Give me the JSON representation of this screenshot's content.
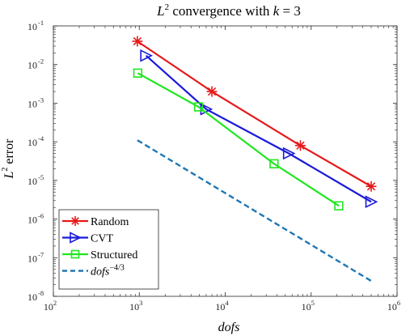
{
  "chart_data": {
    "type": "line",
    "title": "L2 convergence with k = 3",
    "title_parts": {
      "prefix": "L",
      "sup": "2",
      "middle": " convergence with ",
      "var": "k",
      "suffix": " = 3"
    },
    "xlabel": "dofs",
    "ylabel": "L2 error",
    "ylabel_parts": {
      "base": "L",
      "sup": "2",
      "rest": " error"
    },
    "x_scale": "log",
    "y_scale": "log",
    "xlim": [
      100,
      1000000
    ],
    "ylim": [
      1e-08,
      0.1
    ],
    "x_ticks": [
      100,
      1000,
      10000,
      100000,
      1000000
    ],
    "x_tick_labels": [
      {
        "base": "10",
        "exp": "2"
      },
      {
        "base": "10",
        "exp": "3"
      },
      {
        "base": "10",
        "exp": "4"
      },
      {
        "base": "10",
        "exp": "5"
      },
      {
        "base": "10",
        "exp": "6"
      }
    ],
    "y_ticks": [
      1e-08,
      1e-07,
      1e-06,
      1e-05,
      0.0001,
      0.001,
      0.01,
      0.1
    ],
    "y_tick_labels": [
      {
        "base": "10",
        "exp": "-8"
      },
      {
        "base": "10",
        "exp": "-7"
      },
      {
        "base": "10",
        "exp": "-6"
      },
      {
        "base": "10",
        "exp": "-5"
      },
      {
        "base": "10",
        "exp": "-4"
      },
      {
        "base": "10",
        "exp": "-3"
      },
      {
        "base": "10",
        "exp": "-2"
      },
      {
        "base": "10",
        "exp": "-1"
      }
    ],
    "grid": false,
    "legend_placement": "bottom-left",
    "series": [
      {
        "name": "Random",
        "color": "#e6191a",
        "marker": "asterisk",
        "line_style": "solid",
        "x": [
          950,
          7000,
          75000,
          500000
        ],
        "y": [
          0.04,
          0.002,
          8e-05,
          7e-06
        ]
      },
      {
        "name": "CVT",
        "color": "#1a1ad9",
        "marker": "triangle-right",
        "line_style": "solid",
        "x": [
          1200,
          6000,
          55000,
          500000
        ],
        "y": [
          0.017,
          0.0007,
          5e-05,
          2.8e-06
        ]
      },
      {
        "name": "Structured",
        "color": "#1fe61f",
        "marker": "square",
        "line_style": "solid",
        "x": [
          960,
          4900,
          37000,
          210000
        ],
        "y": [
          0.006,
          0.0008,
          2.7e-05,
          2.2e-06
        ]
      },
      {
        "name": "dofs^-4/3",
        "name_parts": {
          "base": "dofs",
          "exp": "−4/3"
        },
        "color": "#1f77b4",
        "marker": "none",
        "line_style": "dashed",
        "x": [
          950,
          500000
        ],
        "y": [
          0.00011,
          2.5e-08
        ]
      }
    ]
  }
}
